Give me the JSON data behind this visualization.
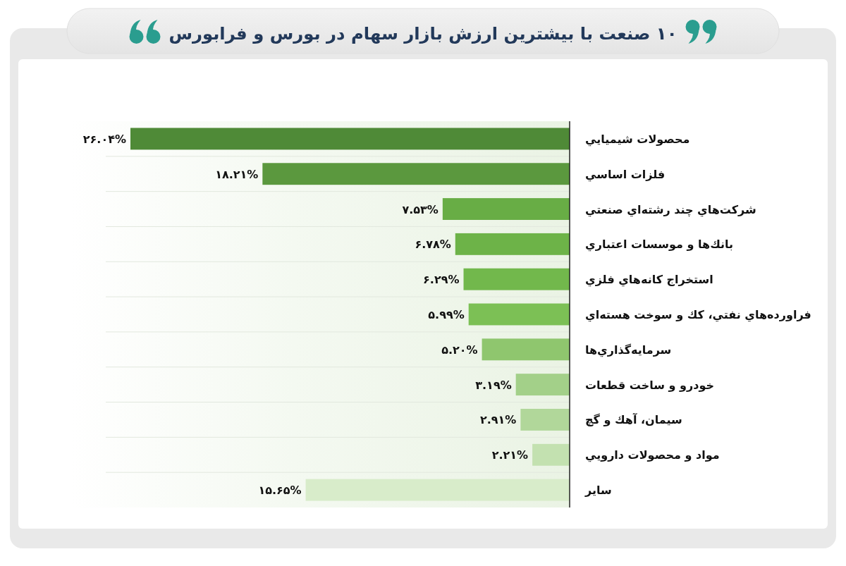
{
  "chart_data": {
    "type": "bar",
    "orientation": "horizontal",
    "title": "۱۰ صنعت با بیشترین ارزش بازار سهام در بورس و فرابورس",
    "categories": [
      "محصولات شيميايي",
      "فلزات اساسي",
      "شركت‌هاي چند رشته‌اي صنعتي",
      "بانك‌ها و موسسات اعتباري",
      "استخراج كانه‌هاي فلزي",
      "فراورده‌هاي نفتي، كك و سوخت هسته‌اي",
      "سرمايه‌گذاري‌ها",
      "خودرو و ساخت قطعات",
      "سيمان، آهك و گچ",
      "مواد و محصولات دارويي",
      "ساير"
    ],
    "values": [
      26.04,
      18.21,
      7.53,
      6.78,
      6.29,
      5.99,
      5.2,
      3.19,
      2.91,
      2.21,
      15.65
    ],
    "value_labels": [
      "۲۶.۰۴%",
      "۱۸.۲۱%",
      "۷.۵۳%",
      "۶.۷۸%",
      "۶.۲۹%",
      "۵.۹۹%",
      "۵.۲۰%",
      "۳.۱۹%",
      "۲.۹۱%",
      "۲.۲۱%",
      "۱۵.۶۵%"
    ],
    "colors": [
      "#4f8a37",
      "#5b983e",
      "#68ad45",
      "#6db348",
      "#72b84c",
      "#7cc055",
      "#8fc66e",
      "#a3d089",
      "#b1d79a",
      "#c3e1b0",
      "#d8ecca"
    ],
    "grid": "y"
  }
}
